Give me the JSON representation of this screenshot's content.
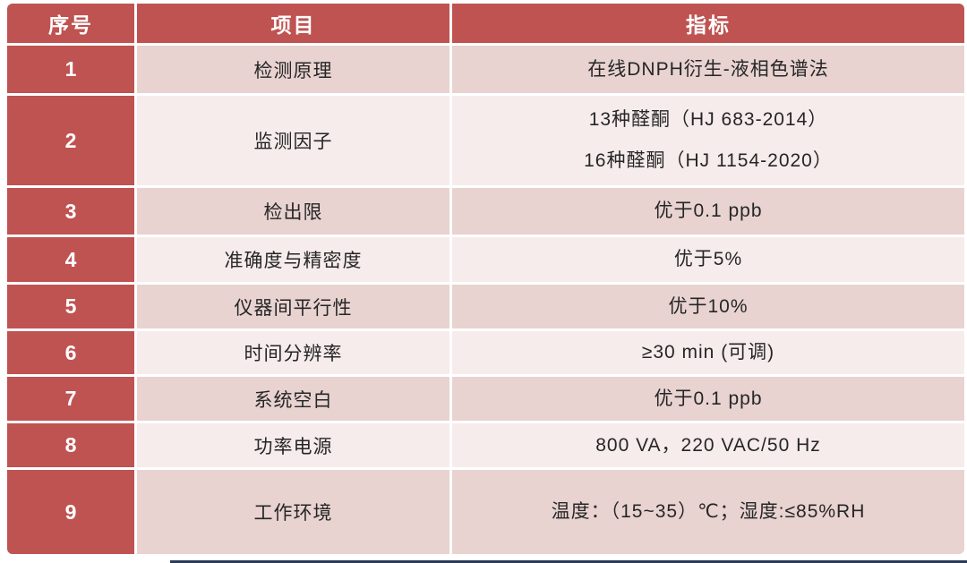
{
  "colors": {
    "header_red": "#bf5351",
    "row_odd_pink": "#e8d3d1",
    "row_even_pink": "#f6eceb",
    "header_text": "#ffffff",
    "body_text": "#262626",
    "bottom_bar_dark": "#2d3b55"
  },
  "table": {
    "columns": [
      {
        "key": "no",
        "label": "序号"
      },
      {
        "key": "item",
        "label": "项目"
      },
      {
        "key": "spec",
        "label": "指标"
      }
    ],
    "rows": [
      {
        "no": "1",
        "item": "检测原理",
        "spec": [
          "在线DNPH衍生-液相色谱法"
        ]
      },
      {
        "no": "2",
        "item": "监测因子",
        "spec": [
          "13种醛酮（HJ 683-2014）",
          "16种醛酮（HJ 1154-2020）"
        ]
      },
      {
        "no": "3",
        "item": "检出限",
        "spec": [
          "优于0.1 ppb"
        ]
      },
      {
        "no": "4",
        "item": "准确度与精密度",
        "spec": [
          "优于5%"
        ]
      },
      {
        "no": "5",
        "item": "仪器间平行性",
        "spec": [
          "优于10%"
        ]
      },
      {
        "no": "6",
        "item": "时间分辨率",
        "spec": [
          "≥30 min (可调)"
        ]
      },
      {
        "no": "7",
        "item": "系统空白",
        "spec": [
          "优于0.1 ppb"
        ]
      },
      {
        "no": "8",
        "item": "功率电源",
        "spec": [
          "800 VA，220 VAC/50 Hz"
        ]
      },
      {
        "no": "9",
        "item": "工作环境",
        "spec": [
          "温度：（15~35）℃；湿度:≤85%RH"
        ]
      }
    ]
  }
}
